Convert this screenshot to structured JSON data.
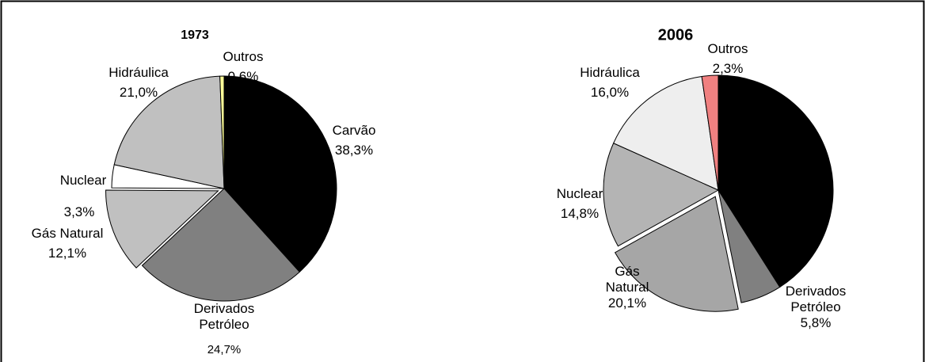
{
  "chart_data": [
    {
      "type": "pie",
      "title": "1973",
      "categories": [
        "Carvão",
        "Derivados Petróleo",
        "Gás Natural",
        "Nuclear",
        "Hidráulica",
        "Outros"
      ],
      "values": [
        38.3,
        24.7,
        12.1,
        3.3,
        21.0,
        0.6
      ],
      "value_labels": [
        "38,3%",
        "24,7%",
        "12,1%",
        "3,3%",
        "21,0%",
        "0,6%"
      ],
      "colors": [
        "#000000",
        "#808080",
        "#c0c0c0",
        "#ffffff",
        "#c0c0c0",
        "#ffff99"
      ]
    },
    {
      "type": "pie",
      "title": "2006",
      "categories": [
        null,
        "Derivados Petróleo",
        "Gás Natural",
        "Nuclear",
        "Hidráulica",
        "Outros"
      ],
      "values": [
        41.0,
        5.8,
        20.1,
        14.8,
        16.0,
        2.3
      ],
      "value_labels": [
        null,
        "5,8%",
        "20,1%",
        "14,8%",
        "16,0%",
        "2,3%"
      ],
      "colors": [
        "#000000",
        "#808080",
        "#a6a6a6",
        "#b4b4b4",
        "#eeeeee",
        "#f08080"
      ]
    }
  ]
}
